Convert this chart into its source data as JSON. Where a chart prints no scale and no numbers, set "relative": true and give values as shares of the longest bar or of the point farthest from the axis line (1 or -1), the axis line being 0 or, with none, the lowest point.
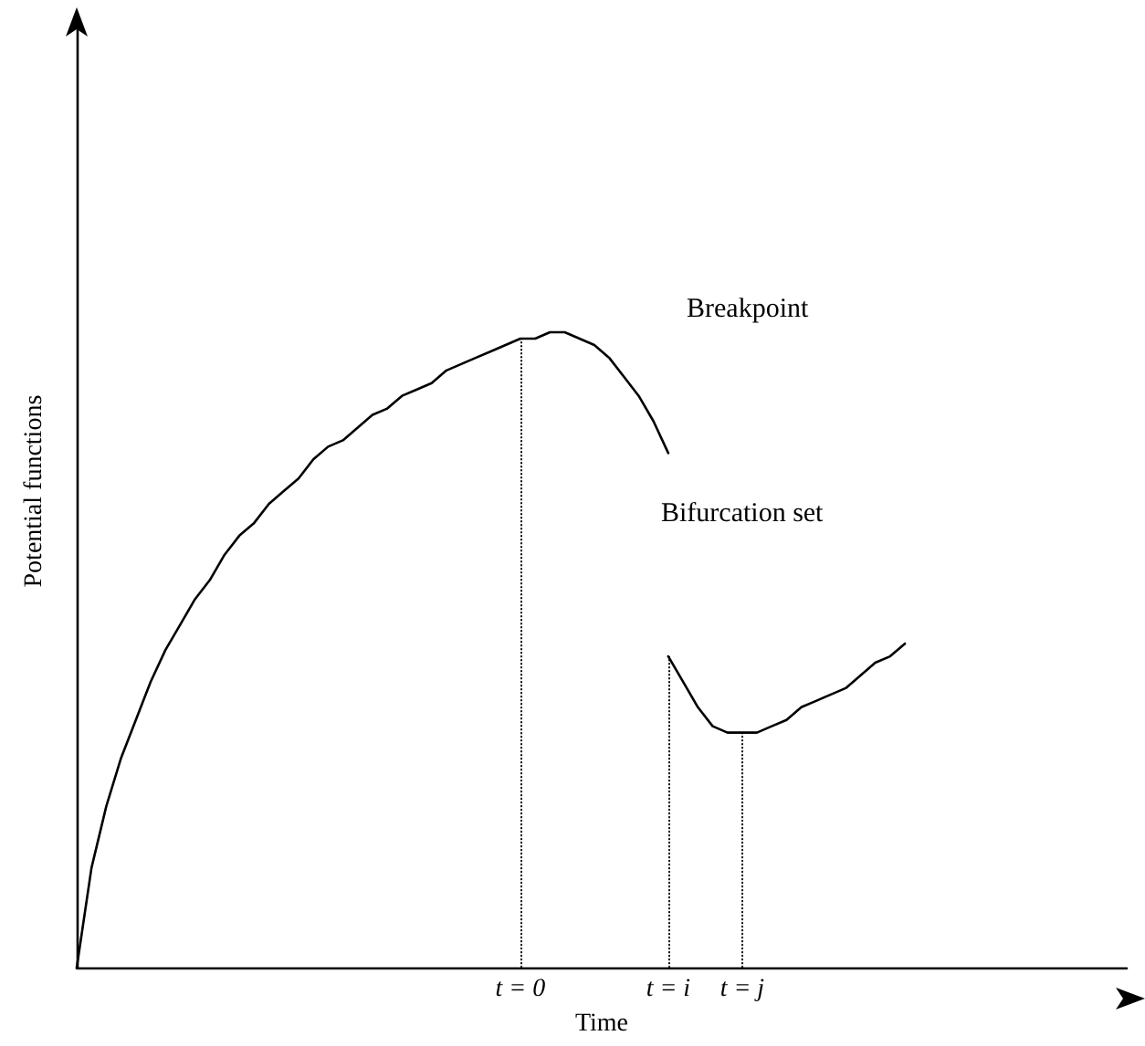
{
  "chart_data": {
    "type": "line",
    "relative": true,
    "xlabel": "Time",
    "ylabel": "Potential functions",
    "marker": "none",
    "categories": [
      null,
      null,
      null,
      null,
      null,
      null,
      null,
      null,
      null,
      null,
      null,
      null,
      null,
      null,
      null,
      null,
      null,
      null,
      null,
      null,
      null,
      null,
      null,
      null,
      null,
      null,
      null,
      null,
      null,
      null,
      "t = 0",
      null,
      null,
      null,
      null,
      null,
      null,
      null,
      null,
      null,
      "t = i",
      null,
      null,
      null,
      null,
      "t = j",
      null,
      null,
      null,
      null,
      null,
      null,
      null,
      null,
      null,
      null,
      null,
      null,
      null,
      null,
      null,
      null,
      null,
      null,
      null,
      null,
      null,
      null,
      null,
      null,
      null,
      null
    ],
    "series": [
      {
        "color": "#000000",
        "values": [
          0,
          0.157,
          0.254,
          0.33,
          0.39,
          0.45,
          0.5,
          0.54,
          0.58,
          0.61,
          0.65,
          0.68,
          0.7,
          0.73,
          0.75,
          0.77,
          0.8,
          0.82,
          0.83,
          0.85,
          0.87,
          0.88,
          0.9,
          0.91,
          0.92,
          0.94,
          0.95,
          0.96,
          0.97,
          0.98,
          0.99,
          0.99,
          1,
          1,
          0.99,
          0.98,
          0.96,
          0.93,
          0.9,
          0.86,
          0.81,
          null,
          null,
          null,
          null,
          null,
          null,
          null,
          null,
          null,
          null,
          null,
          null,
          null,
          null,
          null,
          null,
          null,
          null,
          null,
          null,
          null,
          null,
          null,
          null,
          null,
          null,
          null,
          null,
          null,
          null,
          null
        ]
      },
      {
        "color": "#000000",
        "values": [
          null,
          null,
          null,
          null,
          null,
          null,
          null,
          null,
          null,
          null,
          null,
          null,
          null,
          null,
          null,
          null,
          null,
          null,
          null,
          null,
          null,
          null,
          null,
          null,
          null,
          null,
          null,
          null,
          null,
          null,
          null,
          null,
          null,
          null,
          null,
          null,
          null,
          null,
          null,
          null,
          0.49,
          0.45,
          0.41,
          0.38,
          0.37,
          0.37,
          0.37,
          0.38,
          0.39,
          0.41,
          0.42,
          0.43,
          0.44,
          0.46,
          0.48,
          0.49,
          0.51,
          null,
          null,
          null,
          null,
          null,
          null,
          null,
          null,
          null,
          null,
          null,
          null,
          null,
          null,
          null
        ]
      }
    ],
    "ref_lines": [
      {
        "axis": "x",
        "value": "t = 0",
        "line_style": "dotted",
        "color": "#000000"
      },
      {
        "axis": "x",
        "value": "t = i",
        "line_style": "dotted",
        "color": "#000000"
      },
      {
        "axis": "x",
        "value": "t = j",
        "line_style": "dotted",
        "color": "#000000"
      }
    ],
    "annotations": [
      "Breakpoint",
      "Bifurcation set"
    ]
  }
}
